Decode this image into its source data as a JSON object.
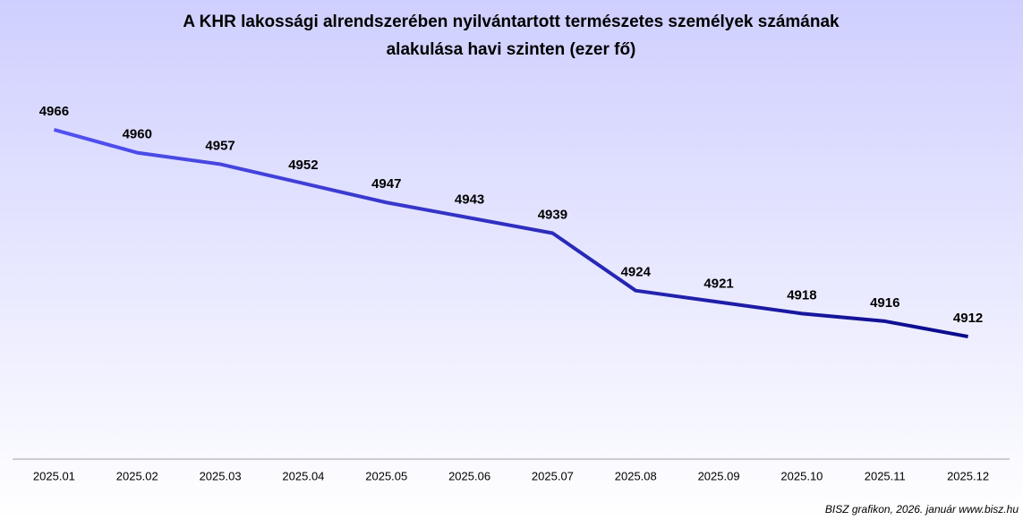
{
  "chart_data": {
    "type": "line",
    "title": [
      "A KHR lakossági alrendszerében nyilvántartott természetes személyek számának",
      "alakulása havi szinten (ezer fő)"
    ],
    "categories": [
      "2025.01",
      "2025.02",
      "2025.03",
      "2025.04",
      "2025.05",
      "2025.06",
      "2025.07",
      "2025.08",
      "2025.09",
      "2025.10",
      "2025.11",
      "2025.12"
    ],
    "values": [
      4966,
      4960,
      4957,
      4952,
      4947,
      4943,
      4939,
      4924,
      4921,
      4918,
      4916,
      4912
    ],
    "colors": [
      "#5252f2",
      "#0a0a8c"
    ],
    "ylim": [
      4880,
      4980
    ],
    "note": "BISZ grafikon, 2026. január www.bisz.hu"
  }
}
